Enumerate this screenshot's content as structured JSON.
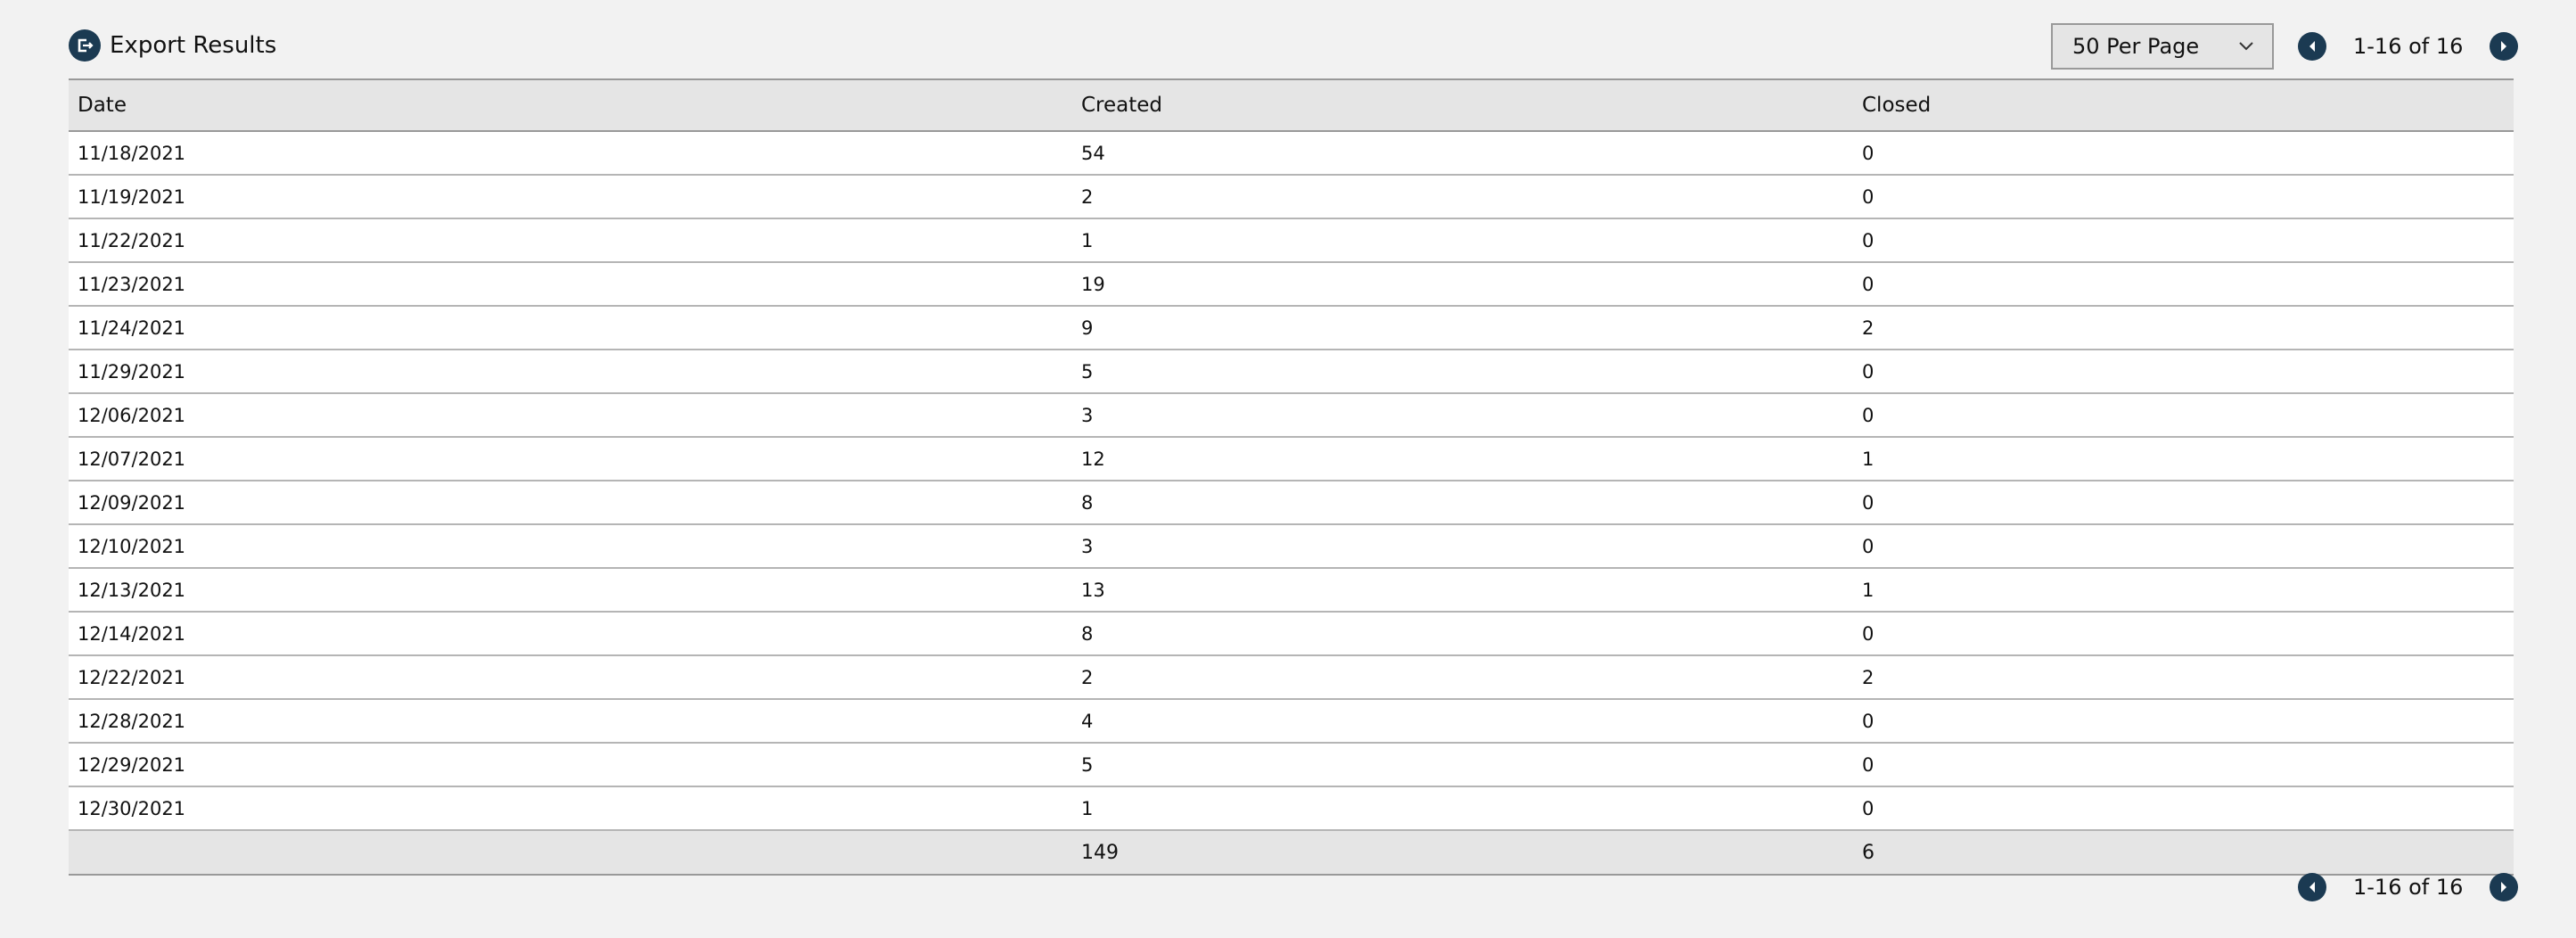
{
  "toolbar": {
    "export_label": "Export Results",
    "export_icon": "export-icon",
    "per_page": "50 Per Page",
    "range": "1-16 of 16"
  },
  "colors": {
    "accent": "#1b3a52",
    "background": "#f2f2f2",
    "header": "#e5e5e5"
  },
  "table": {
    "columns": [
      "Date",
      "Created",
      "Closed"
    ],
    "rows": [
      [
        "11/18/2021",
        "54",
        "0"
      ],
      [
        "11/19/2021",
        "2",
        "0"
      ],
      [
        "11/22/2021",
        "1",
        "0"
      ],
      [
        "11/23/2021",
        "19",
        "0"
      ],
      [
        "11/24/2021",
        "9",
        "2"
      ],
      [
        "11/29/2021",
        "5",
        "0"
      ],
      [
        "12/06/2021",
        "3",
        "0"
      ],
      [
        "12/07/2021",
        "12",
        "1"
      ],
      [
        "12/09/2021",
        "8",
        "0"
      ],
      [
        "12/10/2021",
        "3",
        "0"
      ],
      [
        "12/13/2021",
        "13",
        "1"
      ],
      [
        "12/14/2021",
        "8",
        "0"
      ],
      [
        "12/22/2021",
        "2",
        "2"
      ],
      [
        "12/28/2021",
        "4",
        "0"
      ],
      [
        "12/29/2021",
        "5",
        "0"
      ],
      [
        "12/30/2021",
        "1",
        "0"
      ]
    ],
    "totals": [
      "",
      "149",
      "6"
    ]
  },
  "bottom_pager": {
    "range": "1-16 of 16"
  }
}
